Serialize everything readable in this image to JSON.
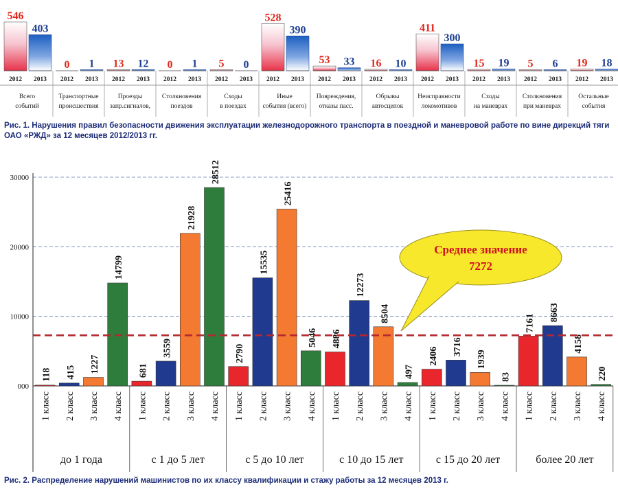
{
  "chart_data": [
    {
      "type": "bar",
      "caption": "Рис. 1. Нарушения правил безопасности движения эксплуатации железнодорожного транспорта в поездной и маневровой работе по вине дирекций тяги ОАО «РЖД» за 12 месяцев 2012/2013 гг.",
      "groups": [
        {
          "label": "Всего событий",
          "x": [
            "2012",
            "2013"
          ],
          "values": [
            546,
            403
          ]
        },
        {
          "label": "Транспортные происшествия",
          "x": [
            "2012",
            "2013"
          ],
          "values": [
            0,
            1
          ]
        },
        {
          "label": "Проезды запр.сигналов,",
          "x": [
            "2012",
            "2013"
          ],
          "values": [
            13,
            12
          ]
        },
        {
          "label": "Столкновения поездов",
          "x": [
            "2012",
            "2013"
          ],
          "values": [
            0,
            1
          ]
        },
        {
          "label": "Сходы в поездах",
          "x": [
            "2012",
            "2013"
          ],
          "values": [
            5,
            0
          ]
        },
        {
          "label": "Иные события (всего)",
          "x": [
            "2012",
            "2013"
          ],
          "values": [
            528,
            390
          ]
        },
        {
          "label": "Повреждения, отказы пасс.",
          "x": [
            "2012",
            "2013"
          ],
          "values": [
            53,
            33
          ]
        },
        {
          "label": "Обрывы автосцепок",
          "x": [
            "2012",
            "2013"
          ],
          "values": [
            16,
            10
          ]
        },
        {
          "label": "Неисправности локомотивов",
          "x": [
            "2012",
            "2013"
          ],
          "values": [
            411,
            300
          ]
        },
        {
          "label": "Сходы на маневрах",
          "x": [
            "2012",
            "2013"
          ],
          "values": [
            15,
            19
          ]
        },
        {
          "label": "Столкновения при маневрах",
          "x": [
            "2012",
            "2013"
          ],
          "values": [
            5,
            6
          ]
        },
        {
          "label": "Остальные события",
          "x": [
            "2012",
            "2013"
          ],
          "values": [
            19,
            18
          ]
        }
      ],
      "colors": {
        "y2012": "#e8334a",
        "y2013": "#1d5fc0",
        "value2012": "#e1251b",
        "value2013": "#1b3e8f"
      }
    },
    {
      "type": "bar",
      "caption": "Рис. 2. Распределение нарушений машинистов по их классу квалификации и стажу работы за 12 месяцев 2013 г.",
      "ylim": [
        0,
        30000
      ],
      "yticks": [
        0,
        10000,
        20000,
        30000
      ],
      "ytick_labels": [
        "000",
        "10000",
        "20000",
        "30000"
      ],
      "average": {
        "label": "Среднее значение",
        "value_label": "7272",
        "value": 7272
      },
      "groups": [
        {
          "label": "до 1 года",
          "categories": [
            "1 класс",
            "2 класс",
            "3 класс",
            "4 класс"
          ],
          "values": [
            118,
            415,
            1227,
            14799
          ]
        },
        {
          "label": "с 1 до 5 лет",
          "categories": [
            "1 класс",
            "2 класс",
            "3 класс",
            "4 класс"
          ],
          "values": [
            681,
            3559,
            21928,
            28512
          ]
        },
        {
          "label": "с 5 до 10 лет",
          "categories": [
            "1 класс",
            "2 класс",
            "3 класс",
            "4 класс"
          ],
          "values": [
            2790,
            15535,
            25416,
            5046
          ]
        },
        {
          "label": "с 10 до 15 лет",
          "categories": [
            "1 класс",
            "2 класс",
            "3 класс",
            "4 класс"
          ],
          "values": [
            4886,
            12273,
            8504,
            497
          ]
        },
        {
          "label": "с 15 до 20 лет",
          "categories": [
            "1 класс",
            "2 класс",
            "3 класс",
            "4 класс"
          ],
          "values": [
            2406,
            3716,
            1939,
            83
          ]
        },
        {
          "label": "более 20 лет",
          "categories": [
            "1 класс",
            "2 класс",
            "3 класс",
            "4 класс"
          ],
          "values": [
            7161,
            8663,
            4158,
            220
          ]
        }
      ],
      "colors": {
        "class1": "#e8262c",
        "class2": "#1f3a8f",
        "class3": "#f47a32",
        "class4": "#2f7d3c",
        "average_line": "#b4282e",
        "callout": "#f7e82b",
        "callout_text": "#d01020"
      }
    }
  ]
}
